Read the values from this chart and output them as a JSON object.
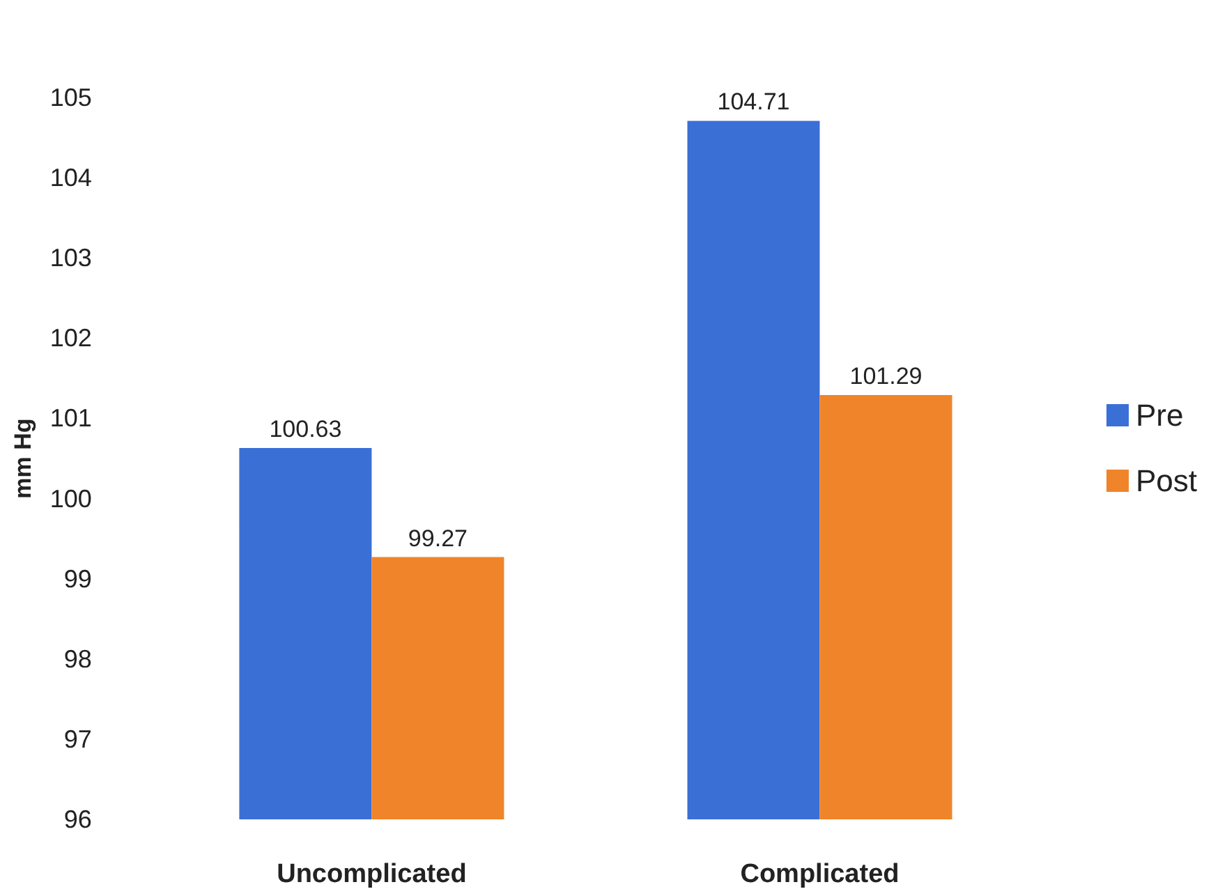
{
  "chart_data": {
    "type": "bar",
    "ylabel": "mm Hg",
    "categories": [
      "Uncomplicated",
      "Complicated"
    ],
    "series": [
      {
        "name": "Pre",
        "color": "#3a6fd6",
        "values": [
          100.63,
          104.71
        ]
      },
      {
        "name": "Post",
        "color": "#f0842a",
        "values": [
          99.27,
          101.29
        ]
      }
    ],
    "ylim": [
      96,
      105
    ],
    "yticks": [
      96,
      97,
      98,
      99,
      100,
      101,
      102,
      103,
      104,
      105
    ],
    "data_labels": true,
    "grid": false,
    "legend": "right"
  }
}
